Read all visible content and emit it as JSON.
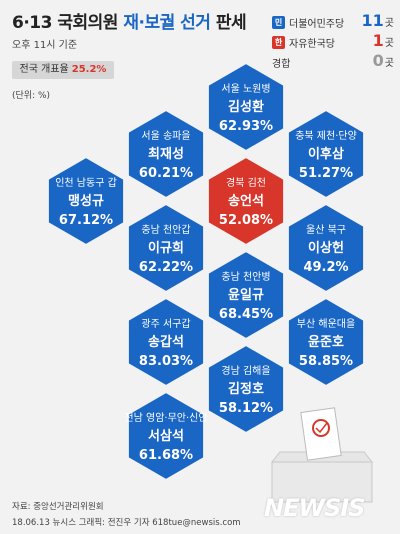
{
  "header": {
    "title_prefix": "6·13 국회의원 ",
    "title_highlight": "재·보궐 선거",
    "title_suffix": " 판세",
    "timestamp": "오후 11시 기준",
    "turnout_label": "전국 개표율",
    "turnout_value": "25.2%",
    "unit_note": "(단위: %)"
  },
  "legend": [
    {
      "badge": "민",
      "party": "더불어민주당",
      "count": "11",
      "unit": "곳",
      "color": "#1a66c4"
    },
    {
      "badge": "한",
      "party": "자유한국당",
      "count": "1",
      "unit": "곳",
      "color": "#d8362a"
    },
    {
      "badge": "",
      "party": "경합",
      "count": "0",
      "unit": "곳",
      "color": "#999999"
    }
  ],
  "colors": {
    "democratic": "#1a66c4",
    "liberty_korea": "#d8362a"
  },
  "chart_data": {
    "type": "table",
    "title": "6·13 국회의원 재·보궐 선거 판세",
    "unit": "%",
    "districts": [
      {
        "district": "서울 노원병",
        "candidate": "김성환",
        "percent": "62.93%",
        "value": 62.93,
        "party": "더불어민주당"
      },
      {
        "district": "서울 송파을",
        "candidate": "최재성",
        "percent": "60.21%",
        "value": 60.21,
        "party": "더불어민주당"
      },
      {
        "district": "충북 제천·단양",
        "candidate": "이후삼",
        "percent": "51.27%",
        "value": 51.27,
        "party": "더불어민주당"
      },
      {
        "district": "인천 남동구 갑",
        "candidate": "맹성규",
        "percent": "67.12%",
        "value": 67.12,
        "party": "더불어민주당"
      },
      {
        "district": "경북 김천",
        "candidate": "송언석",
        "percent": "52.08%",
        "value": 52.08,
        "party": "자유한국당"
      },
      {
        "district": "충남 천안갑",
        "candidate": "이규희",
        "percent": "62.22%",
        "value": 62.22,
        "party": "더불어민주당"
      },
      {
        "district": "울산 북구",
        "candidate": "이상헌",
        "percent": "49.2%",
        "value": 49.2,
        "party": "더불어민주당"
      },
      {
        "district": "충남 천안병",
        "candidate": "윤일규",
        "percent": "68.45%",
        "value": 68.45,
        "party": "더불어민주당"
      },
      {
        "district": "광주 서구갑",
        "candidate": "송갑석",
        "percent": "83.03%",
        "value": 83.03,
        "party": "더불어민주당"
      },
      {
        "district": "부산 해운대을",
        "candidate": "윤준호",
        "percent": "58.85%",
        "value": 58.85,
        "party": "더불어민주당"
      },
      {
        "district": "경남 김해을",
        "candidate": "김정호",
        "percent": "58.12%",
        "value": 58.12,
        "party": "더불어민주당"
      },
      {
        "district": "전남 영암·무안·신안",
        "candidate": "서삼석",
        "percent": "61.68%",
        "value": 61.68,
        "party": "더불어민주당"
      }
    ]
  },
  "footer": {
    "source": "자료: 중앙선거관리위원회",
    "credit": "18.06.13 뉴시스 그래픽: 전진우 기자 618tue@newsis.com",
    "brand": "NEWSIS"
  }
}
